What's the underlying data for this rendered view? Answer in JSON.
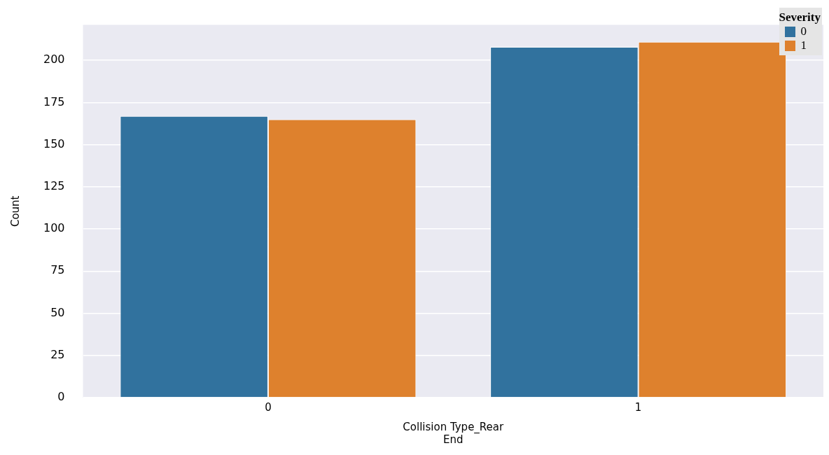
{
  "chart_data": {
    "type": "bar",
    "xlabel": "Collision Type_Rear End",
    "ylabel": "Count",
    "legend_title": "Severity",
    "categories": [
      "0",
      "1"
    ],
    "series": [
      {
        "name": "0",
        "color": "#31729e",
        "values": [
          167,
          208
        ]
      },
      {
        "name": "1",
        "color": "#de812d",
        "values": [
          165,
          211
        ]
      }
    ],
    "ylim": [
      0,
      221
    ],
    "yticks": [
      0,
      25,
      50,
      75,
      100,
      125,
      150,
      175,
      200
    ],
    "grid": "y",
    "legend": "top right"
  }
}
